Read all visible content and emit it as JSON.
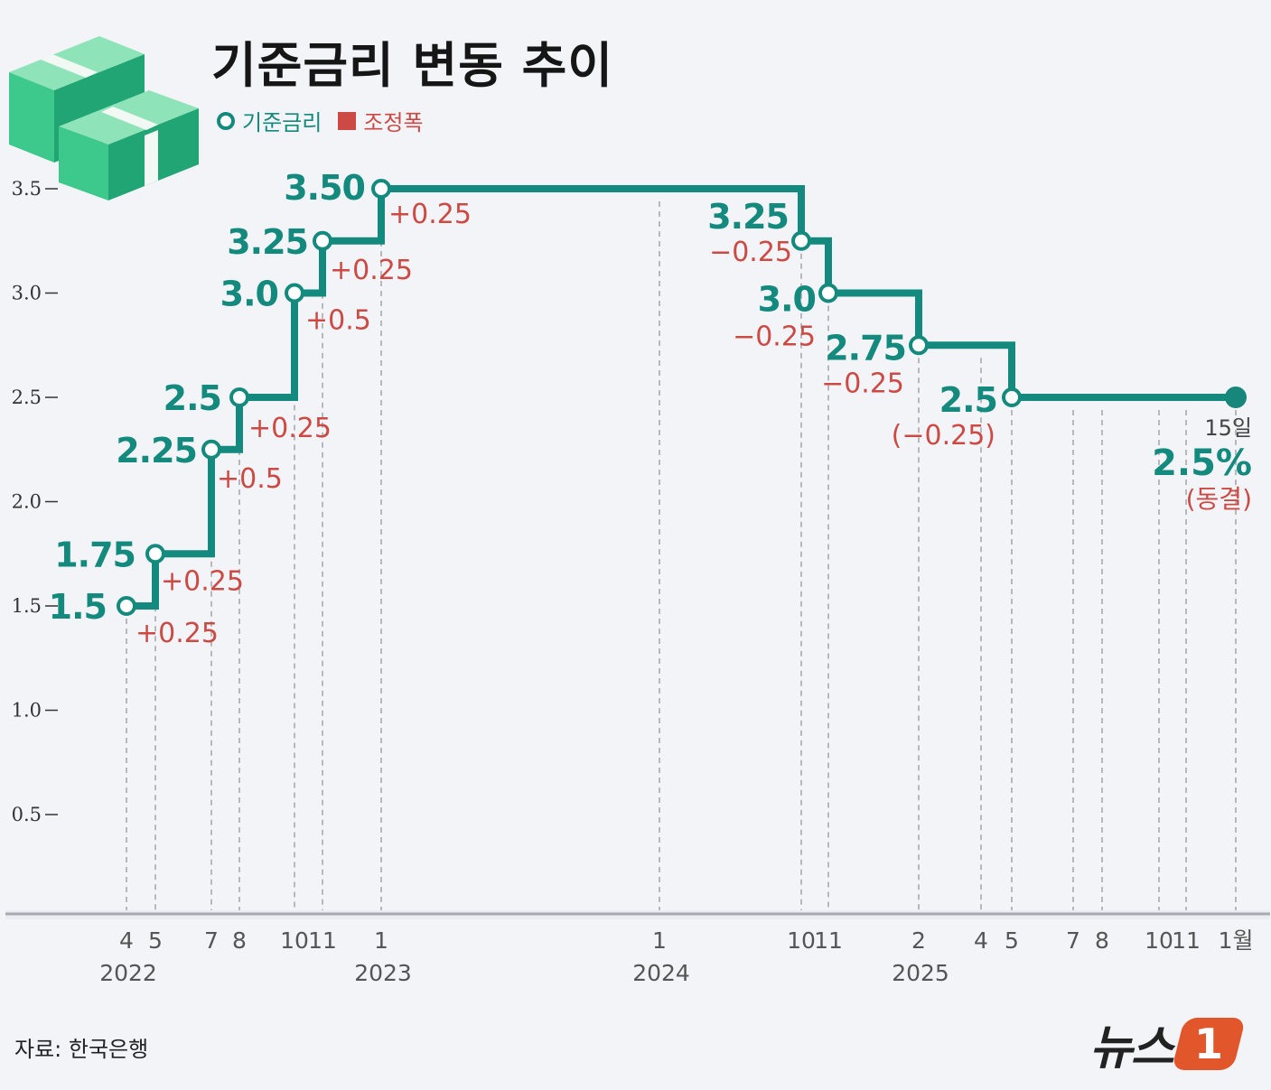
{
  "title": "기준금리 변동 추이",
  "legend": {
    "rate": "기준금리",
    "adjustment": "조정폭"
  },
  "colors": {
    "rate": "#138a7d",
    "adjustment": "#cc4a43",
    "text": "#161616"
  },
  "source": "자료: 한국은행",
  "logo": {
    "word": "뉴스",
    "badge": "1"
  },
  "icon": "stacked-money-bills-icon",
  "chart_data": {
    "type": "line",
    "step": true,
    "title": "기준금리 변동 추이",
    "ylim": [
      0,
      3.5
    ],
    "yticks": [
      "3.5",
      "3.0",
      "2.5",
      "2.0",
      "1.5",
      "1.0",
      "0.5"
    ],
    "ytick_values": [
      3.5,
      3.0,
      2.5,
      2.0,
      1.5,
      1.0,
      0.5
    ],
    "xlim": [
      "2022-03",
      "2026-01"
    ],
    "xticks": [
      {
        "t": "2022-04",
        "label": "4"
      },
      {
        "t": "2022-05",
        "label": "5"
      },
      {
        "t": "2022-07",
        "label": "7"
      },
      {
        "t": "2022-08",
        "label": "8"
      },
      {
        "t": "2022-10",
        "label": "10"
      },
      {
        "t": "2022-11",
        "label": "11"
      },
      {
        "t": "2023-01",
        "label": "1"
      },
      {
        "t": "2024-01",
        "label": "1"
      },
      {
        "t": "2024-10",
        "label": "10"
      },
      {
        "t": "2024-11",
        "label": "11"
      },
      {
        "t": "2025-02",
        "label": "2"
      },
      {
        "t": "2025-04",
        "label": "4"
      },
      {
        "t": "2025-05",
        "label": "5"
      },
      {
        "t": "2025-07",
        "label": "7"
      },
      {
        "t": "2025-08",
        "label": "8"
      },
      {
        "t": "2025-10",
        "label": "10"
      },
      {
        "t": "2025-11",
        "label": "11"
      },
      {
        "t": "2026-01",
        "label": "1월"
      }
    ],
    "year_labels": [
      {
        "t": "2022-04",
        "label": "2022"
      },
      {
        "t": "2023-01",
        "label": "2023"
      },
      {
        "t": "2024-01",
        "label": "2024"
      },
      {
        "t": "2025-02",
        "label": "2025"
      }
    ],
    "series": [
      {
        "name": "기준금리",
        "points": [
          {
            "t": "2022-04",
            "y": 1.5,
            "label": "1.5",
            "change": "+0.25"
          },
          {
            "t": "2022-05",
            "y": 1.75,
            "label": "1.75",
            "change": "+0.25"
          },
          {
            "t": "2022-07",
            "y": 2.25,
            "label": "2.25",
            "change": "+0.5"
          },
          {
            "t": "2022-08",
            "y": 2.5,
            "label": "2.5",
            "change": "+0.25"
          },
          {
            "t": "2022-10",
            "y": 3.0,
            "label": "3.0",
            "change": "+0.5"
          },
          {
            "t": "2022-11",
            "y": 3.25,
            "label": "3.25",
            "change": "+0.25"
          },
          {
            "t": "2023-01",
            "y": 3.5,
            "label": "3.50",
            "change": "+0.25"
          },
          {
            "t": "2024-10",
            "y": 3.25,
            "label": "3.25",
            "change": "−0.25"
          },
          {
            "t": "2024-11",
            "y": 3.0,
            "label": "3.0",
            "change": "−0.25"
          },
          {
            "t": "2025-02",
            "y": 2.75,
            "label": "2.75",
            "change": "−0.25"
          },
          {
            "t": "2025-05",
            "y": 2.5,
            "label": "2.5",
            "change": "(−0.25)"
          },
          {
            "t": "2026-01",
            "y": 2.5,
            "final": true
          }
        ]
      }
    ],
    "final_annotation": {
      "day": "15일",
      "value": "2.5%",
      "status": "(동결)"
    }
  }
}
